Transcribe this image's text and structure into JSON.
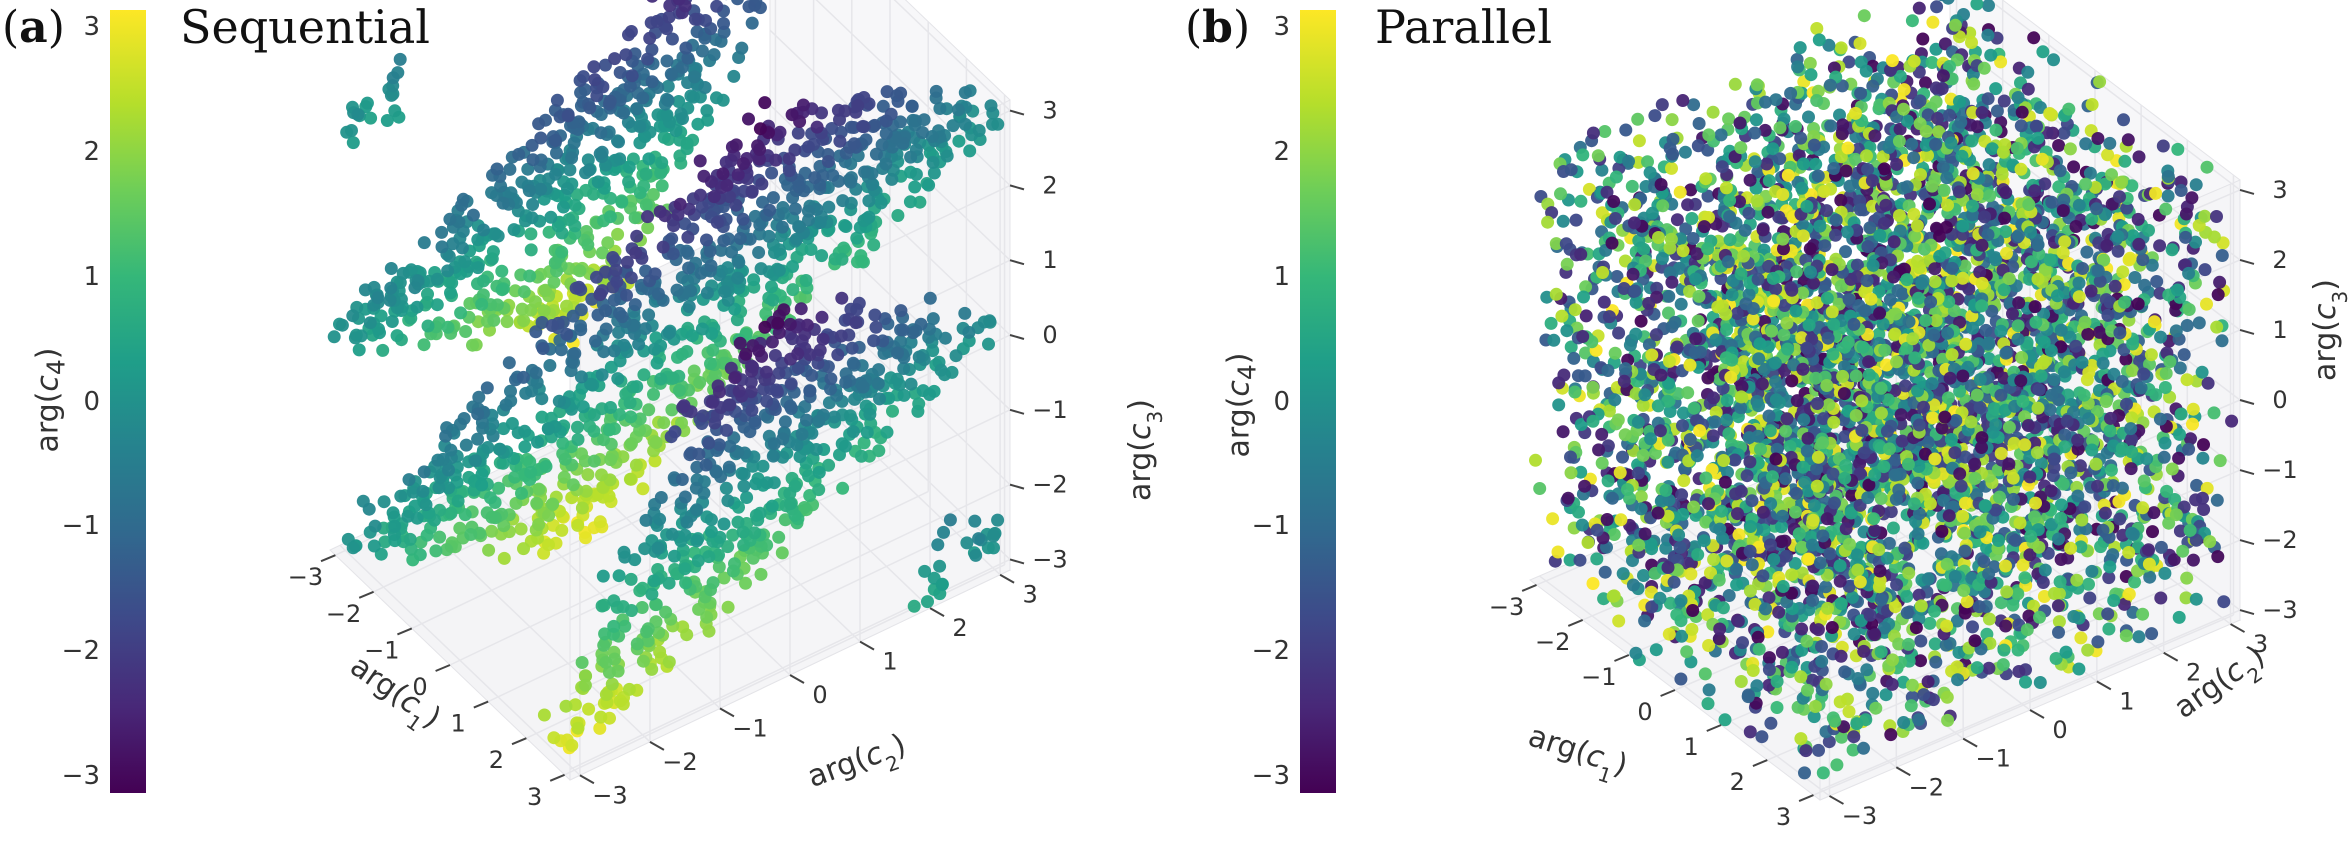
{
  "colors": {
    "viridis": [
      "#440154",
      "#482878",
      "#3e4989",
      "#31688e",
      "#26828e",
      "#1f9e89",
      "#35b779",
      "#6ece58",
      "#b5de2b",
      "#fde725"
    ]
  },
  "chart_data": [
    {
      "type": "scatter",
      "panel": "(a)",
      "title": "Sequential",
      "dims": 3,
      "xlabel": "arg(c_1)",
      "ylabel": "arg(c_2)",
      "zlabel": "arg(c_3)",
      "colorbar_label": "arg(c_4)",
      "xlim": [
        -3.14,
        3.14
      ],
      "ylim": [
        -3.14,
        3.14
      ],
      "zlim": [
        -3.14,
        3.14
      ],
      "x_ticks": [
        "−3",
        "−2",
        "−1",
        "0",
        "1",
        "2",
        "3"
      ],
      "y_ticks": [
        "−3",
        "−2",
        "−1",
        "0",
        "1",
        "2",
        "3"
      ],
      "z_ticks": [
        "3",
        "2",
        "1",
        "0",
        "−1",
        "−2",
        "−3"
      ],
      "colorbar_ticks": [
        "3",
        "2",
        "1",
        "0",
        "−1",
        "−2",
        "−3"
      ],
      "colorbar_range": [
        -3.14,
        3.14
      ],
      "structure": "points lie on parallel diagonal sheets; color varies across each sheet",
      "grid": true
    },
    {
      "type": "scatter",
      "panel": "(b)",
      "title": "Parallel",
      "dims": 3,
      "xlabel": "arg(c_1)",
      "ylabel": "arg(c_2)",
      "zlabel": "arg(c_3)",
      "colorbar_label": "arg(c_4)",
      "xlim": [
        -3.14,
        3.14
      ],
      "ylim": [
        -3.14,
        3.14
      ],
      "zlim": [
        -3.14,
        3.14
      ],
      "x_ticks": [
        "−3",
        "−2",
        "−1",
        "0",
        "1",
        "2",
        "3"
      ],
      "y_ticks": [
        "−3",
        "−2",
        "−1",
        "0",
        "1",
        "2",
        "3"
      ],
      "z_ticks": [
        "3",
        "2",
        "1",
        "0",
        "−1",
        "−2",
        "−3"
      ],
      "colorbar_ticks": [
        "3",
        "2",
        "1",
        "0",
        "−1",
        "−2",
        "−3"
      ],
      "colorbar_range": [
        -3.14,
        3.14
      ],
      "structure": "points fill the whole cube uniformly; colors random",
      "grid": true
    }
  ]
}
